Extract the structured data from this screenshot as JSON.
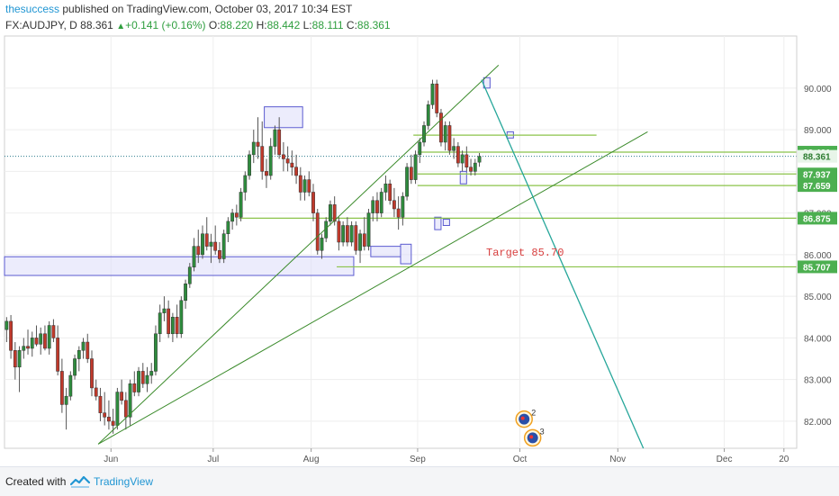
{
  "header": {
    "author": "thesuccess",
    "published_text": "published on TradingView.com, October 03, 2017 10:34 EST",
    "symbol": "FX:AUDJPY, D",
    "last": "88.361",
    "change": "+0.141 (+0.16%)",
    "o_label": "O:",
    "o_value": "88.220",
    "h_label": "H:",
    "h_value": "88.442",
    "l_label": "L:",
    "l_value": "88.111",
    "c_label": "C:",
    "c_value": "88.361"
  },
  "footer": {
    "created_with": "Created with",
    "brand": "TradingView"
  },
  "colors": {
    "up": "#2e8b3d",
    "down": "#c0392b",
    "trendline": "#3a8a2a",
    "projection": "#26a69a",
    "level": "#8bc34a",
    "zone_fill": "#dcdcfa",
    "zone_stroke": "#5a5ad0",
    "target_text": "#d84040",
    "tag_bg": "#4caf50",
    "tag_text": "#ffffff",
    "current_tag_bg": "#e8f5e9"
  },
  "chart_data": {
    "type": "candlestick",
    "symbol": "FX:AUDJPY",
    "timeframe": "D",
    "ylim": [
      81.35,
      91.25
    ],
    "xlim": [
      0,
      186
    ],
    "y_ticks": [
      "82.000",
      "83.000",
      "84.000",
      "85.000",
      "86.000",
      "87.000",
      "88.000",
      "89.000",
      "90.000"
    ],
    "y_tick_values": [
      82,
      83,
      84,
      85,
      86,
      87,
      88,
      89,
      90
    ],
    "x_ticks": [
      {
        "label": "Jun",
        "t": 25
      },
      {
        "label": "Jul",
        "t": 49
      },
      {
        "label": "Aug",
        "t": 72
      },
      {
        "label": "Sep",
        "t": 97
      },
      {
        "label": "Oct",
        "t": 121
      },
      {
        "label": "Nov",
        "t": 144
      },
      {
        "label": "Dec",
        "t": 169
      },
      {
        "label": "20",
        "t": 183
      }
    ],
    "price_tags": [
      {
        "label": "88.461",
        "value": 88.461
      },
      {
        "label": "88.361",
        "value": 88.361,
        "current": true
      },
      {
        "label": "87.937",
        "value": 87.937
      },
      {
        "label": "87.659",
        "value": 87.659
      },
      {
        "label": "86.875",
        "value": 86.875
      },
      {
        "label": "85.707",
        "value": 85.707
      }
    ],
    "level_lines": [
      {
        "value": 88.461,
        "t0": 97,
        "t1": 186
      },
      {
        "value": 87.937,
        "t0": 97,
        "t1": 186
      },
      {
        "value": 87.659,
        "t0": 97,
        "t1": 186
      },
      {
        "value": 86.875,
        "t0": 55,
        "t1": 186
      },
      {
        "value": 85.707,
        "t0": 78,
        "t1": 186
      },
      {
        "value": 88.87,
        "t0": 96,
        "t1": 139
      }
    ],
    "current_value": 88.361,
    "target": {
      "label": "Target 85.70",
      "value": 85.7
    },
    "trendlines": [
      {
        "name": "upper",
        "t0": 22,
        "v0": 81.45,
        "t1": 116,
        "v1": 90.55
      },
      {
        "name": "lower",
        "t0": 22,
        "v0": 81.45,
        "t1": 151,
        "v1": 88.95
      }
    ],
    "projection_line": {
      "t0": 112,
      "v0": 90.2,
      "t1": 150,
      "v1": 81.35
    },
    "zones": [
      {
        "t0": 0,
        "t1": 82,
        "v0": 85.5,
        "v1": 85.95
      },
      {
        "t0": 61,
        "t1": 70,
        "v0": 89.05,
        "v1": 89.55
      },
      {
        "t0": 86,
        "t1": 93,
        "v0": 85.95,
        "v1": 86.2
      },
      {
        "t0": 93,
        "t1": 95.5,
        "v0": 85.78,
        "v1": 86.25
      },
      {
        "t0": 101,
        "t1": 102.5,
        "v0": 86.6,
        "v1": 86.9
      },
      {
        "t0": 103,
        "t1": 104.5,
        "v0": 86.7,
        "v1": 86.85
      },
      {
        "t0": 107,
        "t1": 108.5,
        "v0": 87.7,
        "v1": 88.0
      },
      {
        "t0": 112.5,
        "t1": 114,
        "v0": 90.0,
        "v1": 90.25
      },
      {
        "t0": 118,
        "t1": 119.5,
        "v0": 88.8,
        "v1": 88.95
      }
    ],
    "events": [
      {
        "label": "2",
        "t": 122,
        "v": 82.05
      },
      {
        "label": "3",
        "t": 124,
        "v": 81.6
      }
    ],
    "candles": [
      {
        "o": 84.2,
        "h": 84.5,
        "l": 83.9,
        "c": 84.4
      },
      {
        "o": 84.4,
        "h": 84.55,
        "l": 83.5,
        "c": 83.7
      },
      {
        "o": 83.7,
        "h": 83.9,
        "l": 83.0,
        "c": 83.3
      },
      {
        "o": 83.3,
        "h": 83.8,
        "l": 82.7,
        "c": 83.7
      },
      {
        "o": 83.7,
        "h": 84.0,
        "l": 83.5,
        "c": 83.8
      },
      {
        "o": 83.8,
        "h": 84.2,
        "l": 83.6,
        "c": 83.75
      },
      {
        "o": 83.75,
        "h": 84.15,
        "l": 83.55,
        "c": 84.0
      },
      {
        "o": 84.0,
        "h": 84.3,
        "l": 83.8,
        "c": 83.85
      },
      {
        "o": 83.85,
        "h": 84.25,
        "l": 83.6,
        "c": 84.1
      },
      {
        "o": 84.1,
        "h": 84.3,
        "l": 83.7,
        "c": 83.75
      },
      {
        "o": 83.75,
        "h": 84.4,
        "l": 83.6,
        "c": 84.3
      },
      {
        "o": 84.3,
        "h": 84.45,
        "l": 83.9,
        "c": 84.0
      },
      {
        "o": 84.0,
        "h": 84.3,
        "l": 83.1,
        "c": 83.2
      },
      {
        "o": 83.2,
        "h": 83.5,
        "l": 82.2,
        "c": 82.4
      },
      {
        "o": 82.4,
        "h": 82.8,
        "l": 81.8,
        "c": 82.6
      },
      {
        "o": 82.6,
        "h": 83.2,
        "l": 82.5,
        "c": 83.1
      },
      {
        "o": 83.1,
        "h": 83.6,
        "l": 83.0,
        "c": 83.5
      },
      {
        "o": 83.5,
        "h": 83.8,
        "l": 83.2,
        "c": 83.7
      },
      {
        "o": 83.7,
        "h": 84.0,
        "l": 83.5,
        "c": 83.9
      },
      {
        "o": 83.9,
        "h": 84.1,
        "l": 83.4,
        "c": 83.5
      },
      {
        "o": 83.5,
        "h": 83.7,
        "l": 82.6,
        "c": 82.8
      },
      {
        "o": 82.8,
        "h": 83.0,
        "l": 82.5,
        "c": 82.6
      },
      {
        "o": 82.6,
        "h": 82.8,
        "l": 82.0,
        "c": 82.2
      },
      {
        "o": 82.2,
        "h": 82.7,
        "l": 81.9,
        "c": 82.1
      },
      {
        "o": 82.1,
        "h": 82.5,
        "l": 81.8,
        "c": 82.0
      },
      {
        "o": 82.0,
        "h": 82.3,
        "l": 81.7,
        "c": 81.9
      },
      {
        "o": 81.9,
        "h": 82.8,
        "l": 81.8,
        "c": 82.7
      },
      {
        "o": 82.7,
        "h": 83.0,
        "l": 82.4,
        "c": 82.5
      },
      {
        "o": 82.5,
        "h": 82.7,
        "l": 81.8,
        "c": 82.1
      },
      {
        "o": 82.1,
        "h": 83.0,
        "l": 81.9,
        "c": 82.9
      },
      {
        "o": 82.9,
        "h": 83.2,
        "l": 82.6,
        "c": 82.7
      },
      {
        "o": 82.7,
        "h": 83.3,
        "l": 82.6,
        "c": 83.2
      },
      {
        "o": 83.2,
        "h": 83.4,
        "l": 82.8,
        "c": 82.9
      },
      {
        "o": 82.9,
        "h": 83.3,
        "l": 82.7,
        "c": 83.1
      },
      {
        "o": 83.1,
        "h": 83.4,
        "l": 82.9,
        "c": 83.2
      },
      {
        "o": 83.2,
        "h": 84.3,
        "l": 83.1,
        "c": 84.1
      },
      {
        "o": 84.1,
        "h": 84.8,
        "l": 83.9,
        "c": 84.6
      },
      {
        "o": 84.6,
        "h": 85.0,
        "l": 84.4,
        "c": 84.7
      },
      {
        "o": 84.7,
        "h": 84.9,
        "l": 84.0,
        "c": 84.1
      },
      {
        "o": 84.1,
        "h": 84.6,
        "l": 83.9,
        "c": 84.5
      },
      {
        "o": 84.5,
        "h": 84.8,
        "l": 84.0,
        "c": 84.1
      },
      {
        "o": 84.1,
        "h": 85.0,
        "l": 84.0,
        "c": 84.9
      },
      {
        "o": 84.9,
        "h": 85.4,
        "l": 84.7,
        "c": 85.3
      },
      {
        "o": 85.3,
        "h": 85.8,
        "l": 85.2,
        "c": 85.7
      },
      {
        "o": 85.7,
        "h": 86.4,
        "l": 85.6,
        "c": 86.2
      },
      {
        "o": 86.2,
        "h": 86.6,
        "l": 85.8,
        "c": 86.0
      },
      {
        "o": 86.0,
        "h": 86.7,
        "l": 85.9,
        "c": 86.5
      },
      {
        "o": 86.5,
        "h": 86.9,
        "l": 86.1,
        "c": 86.2
      },
      {
        "o": 86.2,
        "h": 86.5,
        "l": 85.8,
        "c": 86.3
      },
      {
        "o": 86.3,
        "h": 86.7,
        "l": 86.0,
        "c": 86.1
      },
      {
        "o": 86.1,
        "h": 86.3,
        "l": 85.8,
        "c": 85.9
      },
      {
        "o": 85.9,
        "h": 86.6,
        "l": 85.8,
        "c": 86.5
      },
      {
        "o": 86.5,
        "h": 86.9,
        "l": 86.3,
        "c": 86.8
      },
      {
        "o": 86.8,
        "h": 87.1,
        "l": 86.6,
        "c": 87.0
      },
      {
        "o": 87.0,
        "h": 87.2,
        "l": 86.7,
        "c": 86.9
      },
      {
        "o": 86.9,
        "h": 87.6,
        "l": 86.8,
        "c": 87.5
      },
      {
        "o": 87.5,
        "h": 88.0,
        "l": 87.3,
        "c": 87.9
      },
      {
        "o": 87.9,
        "h": 88.5,
        "l": 87.8,
        "c": 88.4
      },
      {
        "o": 88.4,
        "h": 89.0,
        "l": 88.2,
        "c": 88.7
      },
      {
        "o": 88.7,
        "h": 89.3,
        "l": 88.3,
        "c": 88.6
      },
      {
        "o": 88.6,
        "h": 89.2,
        "l": 87.8,
        "c": 88.0
      },
      {
        "o": 88.0,
        "h": 88.3,
        "l": 87.6,
        "c": 87.9
      },
      {
        "o": 87.9,
        "h": 88.8,
        "l": 87.8,
        "c": 88.6
      },
      {
        "o": 88.6,
        "h": 89.1,
        "l": 88.4,
        "c": 89.0
      },
      {
        "o": 89.0,
        "h": 89.3,
        "l": 88.3,
        "c": 88.4
      },
      {
        "o": 88.4,
        "h": 88.7,
        "l": 88.0,
        "c": 88.3
      },
      {
        "o": 88.3,
        "h": 88.6,
        "l": 88.0,
        "c": 88.2
      },
      {
        "o": 88.2,
        "h": 88.5,
        "l": 87.9,
        "c": 88.1
      },
      {
        "o": 88.1,
        "h": 88.4,
        "l": 87.7,
        "c": 87.9
      },
      {
        "o": 87.9,
        "h": 88.1,
        "l": 87.3,
        "c": 87.5
      },
      {
        "o": 87.5,
        "h": 87.9,
        "l": 87.3,
        "c": 87.8
      },
      {
        "o": 87.8,
        "h": 88.0,
        "l": 87.4,
        "c": 87.5
      },
      {
        "o": 87.5,
        "h": 87.7,
        "l": 86.8,
        "c": 87.0
      },
      {
        "o": 87.0,
        "h": 87.1,
        "l": 86.0,
        "c": 86.1
      },
      {
        "o": 86.1,
        "h": 86.5,
        "l": 85.9,
        "c": 86.4
      },
      {
        "o": 86.4,
        "h": 86.9,
        "l": 86.3,
        "c": 86.8
      },
      {
        "o": 86.8,
        "h": 87.3,
        "l": 86.7,
        "c": 87.2
      },
      {
        "o": 87.2,
        "h": 87.4,
        "l": 86.7,
        "c": 86.8
      },
      {
        "o": 86.8,
        "h": 86.9,
        "l": 86.1,
        "c": 86.3
      },
      {
        "o": 86.3,
        "h": 86.8,
        "l": 86.2,
        "c": 86.7
      },
      {
        "o": 86.7,
        "h": 86.9,
        "l": 86.2,
        "c": 86.3
      },
      {
        "o": 86.3,
        "h": 86.8,
        "l": 86.2,
        "c": 86.7
      },
      {
        "o": 86.7,
        "h": 86.8,
        "l": 86.0,
        "c": 86.1
      },
      {
        "o": 86.1,
        "h": 86.6,
        "l": 85.8,
        "c": 86.5
      },
      {
        "o": 86.5,
        "h": 86.9,
        "l": 86.1,
        "c": 86.2
      },
      {
        "o": 86.2,
        "h": 87.1,
        "l": 86.1,
        "c": 87.0
      },
      {
        "o": 87.0,
        "h": 87.4,
        "l": 86.8,
        "c": 87.3
      },
      {
        "o": 87.3,
        "h": 87.5,
        "l": 86.8,
        "c": 87.0
      },
      {
        "o": 87.0,
        "h": 87.6,
        "l": 86.9,
        "c": 87.5
      },
      {
        "o": 87.5,
        "h": 87.9,
        "l": 87.3,
        "c": 87.7
      },
      {
        "o": 87.7,
        "h": 87.8,
        "l": 87.2,
        "c": 87.3
      },
      {
        "o": 87.3,
        "h": 87.6,
        "l": 86.9,
        "c": 87.1
      },
      {
        "o": 87.1,
        "h": 87.4,
        "l": 86.6,
        "c": 86.9
      },
      {
        "o": 86.9,
        "h": 87.5,
        "l": 86.7,
        "c": 87.4
      },
      {
        "o": 87.4,
        "h": 88.2,
        "l": 87.3,
        "c": 88.1
      },
      {
        "o": 88.1,
        "h": 88.4,
        "l": 87.7,
        "c": 87.8
      },
      {
        "o": 87.8,
        "h": 88.5,
        "l": 87.7,
        "c": 88.4
      },
      {
        "o": 88.4,
        "h": 88.8,
        "l": 88.2,
        "c": 88.7
      },
      {
        "o": 88.7,
        "h": 89.2,
        "l": 88.6,
        "c": 89.1
      },
      {
        "o": 89.1,
        "h": 89.7,
        "l": 89.0,
        "c": 89.6
      },
      {
        "o": 89.6,
        "h": 90.2,
        "l": 89.5,
        "c": 90.1
      },
      {
        "o": 90.1,
        "h": 90.2,
        "l": 89.3,
        "c": 89.4
      },
      {
        "o": 89.4,
        "h": 89.5,
        "l": 88.6,
        "c": 88.7
      },
      {
        "o": 88.7,
        "h": 89.2,
        "l": 88.5,
        "c": 89.1
      },
      {
        "o": 89.1,
        "h": 89.2,
        "l": 88.4,
        "c": 88.5
      },
      {
        "o": 88.5,
        "h": 88.8,
        "l": 88.3,
        "c": 88.6
      },
      {
        "o": 88.6,
        "h": 88.7,
        "l": 88.1,
        "c": 88.2
      },
      {
        "o": 88.2,
        "h": 88.5,
        "l": 88.0,
        "c": 88.4
      },
      {
        "o": 88.4,
        "h": 88.6,
        "l": 88.0,
        "c": 88.1
      },
      {
        "o": 88.1,
        "h": 88.3,
        "l": 87.9,
        "c": 88.0
      },
      {
        "o": 88.0,
        "h": 88.3,
        "l": 87.9,
        "c": 88.2
      },
      {
        "o": 88.22,
        "h": 88.44,
        "l": 88.11,
        "c": 88.36
      }
    ]
  }
}
